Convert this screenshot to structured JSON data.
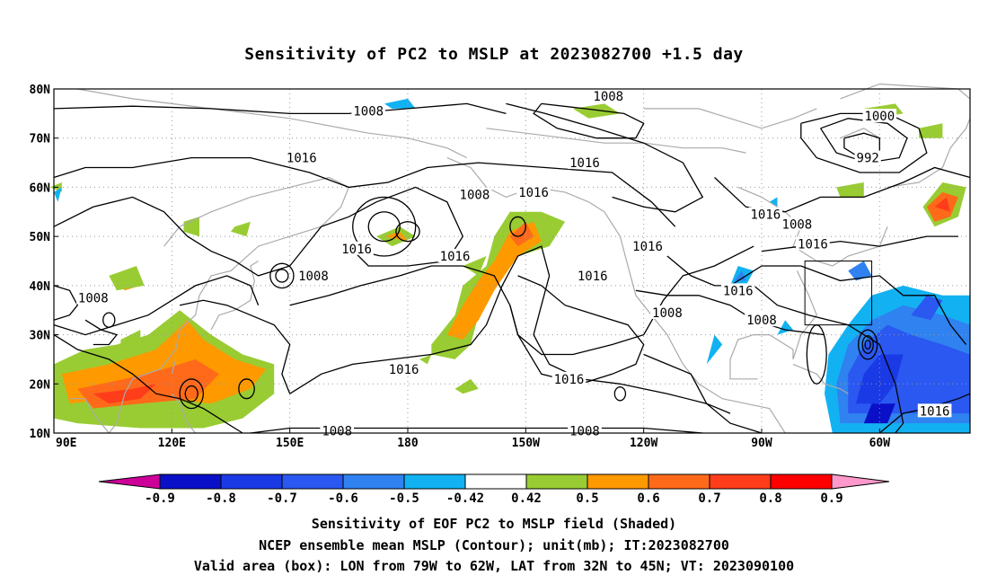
{
  "title": "Sensitivity of PC2 to MSLP at 2023082700 +1.5 day",
  "map": {
    "lon_labels": [
      "90E",
      "120E",
      "150E",
      "180",
      "150W",
      "120W",
      "90W",
      "60W"
    ],
    "lat_labels": [
      "10N",
      "20N",
      "30N",
      "40N",
      "50N",
      "60N",
      "70N",
      "80N"
    ],
    "lon_range": [
      90,
      323
    ],
    "lat_range": [
      10,
      80
    ],
    "grid_style": "dotted",
    "box": {
      "lon": [
        281,
        298
      ],
      "lat": [
        32,
        45
      ]
    }
  },
  "colors": {
    "neg_09": "#0a10c8",
    "neg_08": "#1a3ae6",
    "neg_07": "#2a58f0",
    "neg_06": "#2f82f0",
    "neg_05": "#12b2f2",
    "pos_05": "#99cc33",
    "pos_06": "#ff9900",
    "pos_07": "#ff6a1a",
    "pos_08": "#ff3d1a",
    "pos_09": "#ff0000",
    "low_end": "#cc0099",
    "high_end": "#ff99cc",
    "coast": "#aaaaaa"
  },
  "colorbar": {
    "labels": [
      "-0.9",
      "-0.8",
      "-0.7",
      "-0.6",
      "-0.5",
      "-0.42",
      "0.42",
      "0.5",
      "0.6",
      "0.7",
      "0.8",
      "0.9"
    ],
    "colors": [
      "#0a10c8",
      "#1a3ae6",
      "#2a58f0",
      "#2f82f0",
      "#12b2f2",
      "#ffffff",
      "#99cc33",
      "#ff9900",
      "#ff6a1a",
      "#ff3d1a",
      "#ff0000"
    ]
  },
  "contour_labels": [
    {
      "text": "1008",
      "lon": 170,
      "lat": 75.5
    },
    {
      "text": "1016",
      "lon": 153,
      "lat": 66
    },
    {
      "text": "1008",
      "lon": 197,
      "lat": 58.5
    },
    {
      "text": "1016",
      "lon": 225,
      "lat": 65
    },
    {
      "text": "1016",
      "lon": 212,
      "lat": 59
    },
    {
      "text": "1008",
      "lon": 231,
      "lat": 78.5
    },
    {
      "text": "1000",
      "lon": 300,
      "lat": 74.5
    },
    {
      "text": "992",
      "lon": 297,
      "lat": 66
    },
    {
      "text": "1016",
      "lon": 271,
      "lat": 54.5
    },
    {
      "text": "1008",
      "lon": 279,
      "lat": 52.5
    },
    {
      "text": "1016",
      "lon": 283,
      "lat": 48.5
    },
    {
      "text": "1016",
      "lon": 167,
      "lat": 47.5
    },
    {
      "text": "1016",
      "lon": 192,
      "lat": 46
    },
    {
      "text": "1016",
      "lon": 241,
      "lat": 48
    },
    {
      "text": "1016",
      "lon": 227,
      "lat": 42
    },
    {
      "text": "1008",
      "lon": 156,
      "lat": 42
    },
    {
      "text": "1008",
      "lon": 100,
      "lat": 37.5
    },
    {
      "text": "1016",
      "lon": 264,
      "lat": 39
    },
    {
      "text": "1008",
      "lon": 246,
      "lat": 34.5
    },
    {
      "text": "1008",
      "lon": 270,
      "lat": 33
    },
    {
      "text": "1016",
      "lon": 179,
      "lat": 23
    },
    {
      "text": "1016",
      "lon": 221,
      "lat": 21
    },
    {
      "text": "1008",
      "lon": 225,
      "lat": 10.5
    },
    {
      "text": "1008",
      "lon": 162,
      "lat": 10.5
    },
    {
      "text": "1016",
      "lon": 314,
      "lat": 14.5
    }
  ],
  "footer": {
    "line1": "Sensitivity of EOF PC2 to MSLP field (Shaded)",
    "line2": "NCEP ensemble mean MSLP (Contour); unit(mb); IT:2023082700",
    "line3": "Valid area (box): LON from 79W to 62W, LAT from 32N to 45N; VT: 2023090100"
  }
}
